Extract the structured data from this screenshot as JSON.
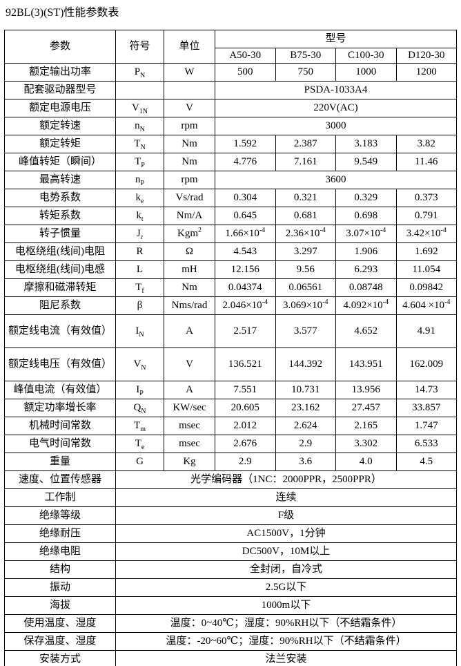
{
  "page": {
    "title": "92BL(3)(ST)性能参数表"
  },
  "table": {
    "header": {
      "param": "参数",
      "symbol": "符号",
      "unit": "单位",
      "model_group": "型号",
      "models": [
        "A50-30",
        "B75-30",
        "C100-30",
        "D120-30"
      ]
    },
    "rows": [
      {
        "label": "额定输出功率",
        "symbol": "P_N",
        "unit": "W",
        "values": [
          "500",
          "750",
          "1000",
          "1200"
        ]
      },
      {
        "label": "配套驱动器型号",
        "symbol": "",
        "unit": "",
        "span": "PSDA-1033A4"
      },
      {
        "label": "额定电源电压",
        "symbol": "V_1N",
        "unit": "V",
        "span": "220V(AC)"
      },
      {
        "label": "额定转速",
        "symbol": "n_N",
        "unit": "rpm",
        "span": "3000"
      },
      {
        "label": "额定转矩",
        "symbol": "T_N",
        "unit": "Nm",
        "values": [
          "1.592",
          "2.387",
          "3.183",
          "3.82"
        ]
      },
      {
        "label": "峰值转矩（瞬间）",
        "symbol": "T_P",
        "unit": "Nm",
        "values": [
          "4.776",
          "7.161",
          "9.549",
          "11.46"
        ]
      },
      {
        "label": "最高转速",
        "symbol": "n_P",
        "unit": "rpm",
        "span": "3600"
      },
      {
        "label": "电势系数",
        "symbol": "k_e",
        "unit": "Vs/rad",
        "values": [
          "0.304",
          "0.321",
          "0.329",
          "0.373"
        ]
      },
      {
        "label": "转矩系数",
        "symbol": "k_t",
        "unit": "Nm/A",
        "values": [
          "0.645",
          "0.681",
          "0.698",
          "0.791"
        ]
      },
      {
        "label": "转子惯量",
        "symbol": "J_r",
        "unit": "Kgm^2",
        "values": [
          "1.66×10^-4",
          "2.36×10^-4",
          "3.07×10^-4",
          "3.42×10^-4"
        ]
      },
      {
        "label": "电枢绕组(线间)电阻",
        "symbol": "R",
        "unit": "Ω",
        "values": [
          "4.543",
          "3.297",
          "1.906",
          "1.692"
        ]
      },
      {
        "label": "电枢绕组(线间)电感",
        "symbol": "L",
        "unit": "mH",
        "values": [
          "12.156",
          "9.56",
          "6.293",
          "11.054"
        ]
      },
      {
        "label": "摩擦和磁滞转矩",
        "symbol": "T_f",
        "unit": "Nm",
        "values": [
          "0.04374",
          "0.06561",
          "0.08748",
          "0.09842"
        ]
      },
      {
        "label": "阻尼系数",
        "symbol": "β",
        "unit": "Nms/rad",
        "values": [
          "2.046×10^-4",
          "3.069×10^-4",
          "4.092×10^-4",
          "4.604 ×10^-4"
        ]
      },
      {
        "label": "额定线电流（有效值）",
        "symbol": "I_N",
        "unit": "A",
        "values": [
          "2.517",
          "3.577",
          "4.652",
          "4.91"
        ],
        "tall": true
      },
      {
        "label": "额定线电压（有效值）",
        "symbol": "V_N",
        "unit": "V",
        "values": [
          "136.521",
          "144.392",
          "143.951",
          "162.009"
        ],
        "tall": true
      },
      {
        "label": "峰值电流（有效值）",
        "symbol": "I_P",
        "unit": "A",
        "values": [
          "7.551",
          "10.731",
          "13.956",
          "14.73"
        ]
      },
      {
        "label": "额定功率增长率",
        "symbol": "Q_N",
        "unit": "KW/sec",
        "values": [
          "20.605",
          "23.162",
          "27.457",
          "33.857"
        ]
      },
      {
        "label": "机械时间常数",
        "symbol": "T_m",
        "unit": "msec",
        "values": [
          "2.012",
          "2.624",
          "2.165",
          "1.747"
        ]
      },
      {
        "label": "电气时间常数",
        "symbol": "T_e",
        "unit": "msec",
        "values": [
          "2.676",
          "2.9",
          "3.302",
          "6.533"
        ]
      },
      {
        "label": "重量",
        "symbol": "G",
        "unit": "Kg",
        "values": [
          "2.9",
          "3.6",
          "4.0",
          "4.5"
        ]
      },
      {
        "label": "速度、位置传感器",
        "full_span": "光学编码器（1NC：2000PPR，2500PPR）"
      },
      {
        "label": "工作制",
        "full_span": "连续"
      },
      {
        "label": "绝缘等级",
        "full_span": "F级"
      },
      {
        "label": "绝缘耐压",
        "full_span": "AC1500V，1分钟"
      },
      {
        "label": "绝缘电阻",
        "full_span": "DC500V，10M以上"
      },
      {
        "label": "结构",
        "full_span": "全封闭，自冷式"
      },
      {
        "label": "振动",
        "full_span": "2.5G以下"
      },
      {
        "label": "海拔",
        "full_span": "1000m以下"
      },
      {
        "label": "使用温度、湿度",
        "full_span": "温度：0~40℃；湿度：90%RH以下（不结霜条件）"
      },
      {
        "label": "保存温度、湿度",
        "full_span": "温度：-20~60℃；湿度：90%RH以下（不结霜条件）"
      },
      {
        "label": "安装方式",
        "full_span": "法兰安装"
      }
    ],
    "colors": {
      "border": "#000000",
      "text": "#000000",
      "background": "#ffffff"
    }
  }
}
